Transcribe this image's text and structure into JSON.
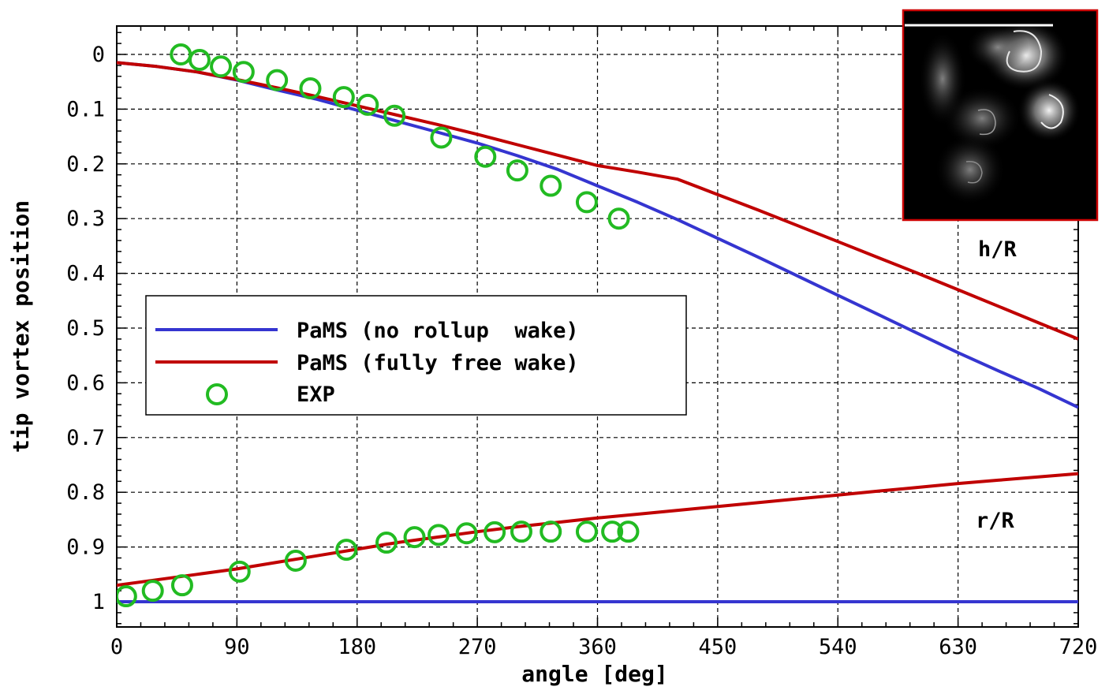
{
  "chart_data": {
    "type": "line",
    "title": "",
    "xlabel": "angle [deg]",
    "ylabel": "tip vortex position",
    "xlim": [
      0,
      720
    ],
    "ylim": [
      0,
      1
    ],
    "y_inverted": true,
    "xticks": [
      0,
      90,
      180,
      270,
      360,
      450,
      540,
      630,
      720
    ],
    "xtick_labels": [
      "0",
      "90",
      "180",
      "270",
      "360",
      "450",
      "540",
      "630",
      "720"
    ],
    "yticks": [
      0,
      0.1,
      0.2,
      0.3,
      0.4,
      0.5,
      0.6,
      0.7,
      0.8,
      0.9,
      1
    ],
    "ytick_labels": [
      "0",
      "0.1",
      "0.2",
      "0.3",
      "0.4",
      "0.5",
      "0.6",
      "0.7",
      "0.8",
      "0.9",
      "1"
    ],
    "grid": true,
    "legend_position": "center-left",
    "annotations": [
      {
        "text": "h/R",
        "x": 665,
        "y": 0.36
      },
      {
        "text": "r/R",
        "x": 665,
        "y": 0.855
      }
    ],
    "series": [
      {
        "name": "PaMS (no rollup  wake)",
        "color": "#3535d0",
        "style": "line",
        "curves": [
          [
            [
              0,
              0.015
            ],
            [
              30,
              0.022
            ],
            [
              60,
              0.032
            ],
            [
              90,
              0.047
            ],
            [
              120,
              0.065
            ],
            [
              150,
              0.082
            ],
            [
              180,
              0.102
            ],
            [
              210,
              0.122
            ],
            [
              240,
              0.142
            ],
            [
              270,
              0.162
            ],
            [
              300,
              0.185
            ],
            [
              330,
              0.21
            ],
            [
              360,
              0.24
            ],
            [
              390,
              0.27
            ],
            [
              420,
              0.302
            ],
            [
              450,
              0.336
            ],
            [
              480,
              0.37
            ],
            [
              510,
              0.405
            ],
            [
              540,
              0.44
            ],
            [
              570,
              0.475
            ],
            [
              600,
              0.51
            ],
            [
              630,
              0.545
            ],
            [
              660,
              0.578
            ],
            [
              690,
              0.61
            ],
            [
              720,
              0.645
            ]
          ],
          [
            [
              0,
              1.0
            ],
            [
              720,
              1.0
            ]
          ]
        ]
      },
      {
        "name": "PaMS (fully free wake)",
        "color": "#c00000",
        "style": "line",
        "curves": [
          [
            [
              0,
              0.015
            ],
            [
              30,
              0.022
            ],
            [
              60,
              0.032
            ],
            [
              90,
              0.046
            ],
            [
              120,
              0.061
            ],
            [
              150,
              0.077
            ],
            [
              180,
              0.094
            ],
            [
              210,
              0.111
            ],
            [
              240,
              0.128
            ],
            [
              270,
              0.146
            ],
            [
              300,
              0.165
            ],
            [
              330,
              0.184
            ],
            [
              360,
              0.203
            ],
            [
              390,
              0.215
            ],
            [
              420,
              0.228
            ],
            [
              450,
              0.256
            ],
            [
              480,
              0.284
            ],
            [
              510,
              0.313
            ],
            [
              540,
              0.342
            ],
            [
              570,
              0.371
            ],
            [
              600,
              0.4
            ],
            [
              630,
              0.43
            ],
            [
              660,
              0.46
            ],
            [
              690,
              0.49
            ],
            [
              720,
              0.52
            ]
          ],
          [
            [
              0,
              0.97
            ],
            [
              30,
              0.96
            ],
            [
              60,
              0.95
            ],
            [
              90,
              0.94
            ],
            [
              120,
              0.928
            ],
            [
              150,
              0.916
            ],
            [
              180,
              0.904
            ],
            [
              210,
              0.892
            ],
            [
              240,
              0.882
            ],
            [
              270,
              0.872
            ],
            [
              300,
              0.863
            ],
            [
              330,
              0.855
            ],
            [
              360,
              0.847
            ],
            [
              390,
              0.84
            ],
            [
              420,
              0.833
            ],
            [
              450,
              0.826
            ],
            [
              480,
              0.819
            ],
            [
              510,
              0.812
            ],
            [
              540,
              0.805
            ],
            [
              570,
              0.798
            ],
            [
              600,
              0.791
            ],
            [
              630,
              0.784
            ],
            [
              660,
              0.778
            ],
            [
              690,
              0.772
            ],
            [
              720,
              0.766
            ]
          ]
        ]
      },
      {
        "name": "EXP",
        "color": "#22bb22",
        "style": "markers",
        "points": [
          [
            48,
            0.0
          ],
          [
            62,
            0.01
          ],
          [
            78,
            0.022
          ],
          [
            95,
            0.032
          ],
          [
            120,
            0.047
          ],
          [
            145,
            0.062
          ],
          [
            170,
            0.078
          ],
          [
            188,
            0.092
          ],
          [
            208,
            0.112
          ],
          [
            243,
            0.152
          ],
          [
            276,
            0.187
          ],
          [
            300,
            0.212
          ],
          [
            325,
            0.24
          ],
          [
            352,
            0.27
          ],
          [
            376,
            0.3
          ],
          [
            7,
            0.99
          ],
          [
            27,
            0.98
          ],
          [
            49,
            0.97
          ],
          [
            92,
            0.945
          ],
          [
            134,
            0.925
          ],
          [
            172,
            0.905
          ],
          [
            202,
            0.892
          ],
          [
            223,
            0.882
          ],
          [
            241,
            0.878
          ],
          [
            262,
            0.875
          ],
          [
            283,
            0.873
          ],
          [
            303,
            0.872
          ],
          [
            325,
            0.872
          ],
          [
            352,
            0.872
          ],
          [
            371,
            0.872
          ],
          [
            383,
            0.872
          ]
        ]
      }
    ]
  },
  "inset_image": {
    "description_icon": "vortex-flow-photo-icon",
    "border_color": "#cc0000"
  }
}
